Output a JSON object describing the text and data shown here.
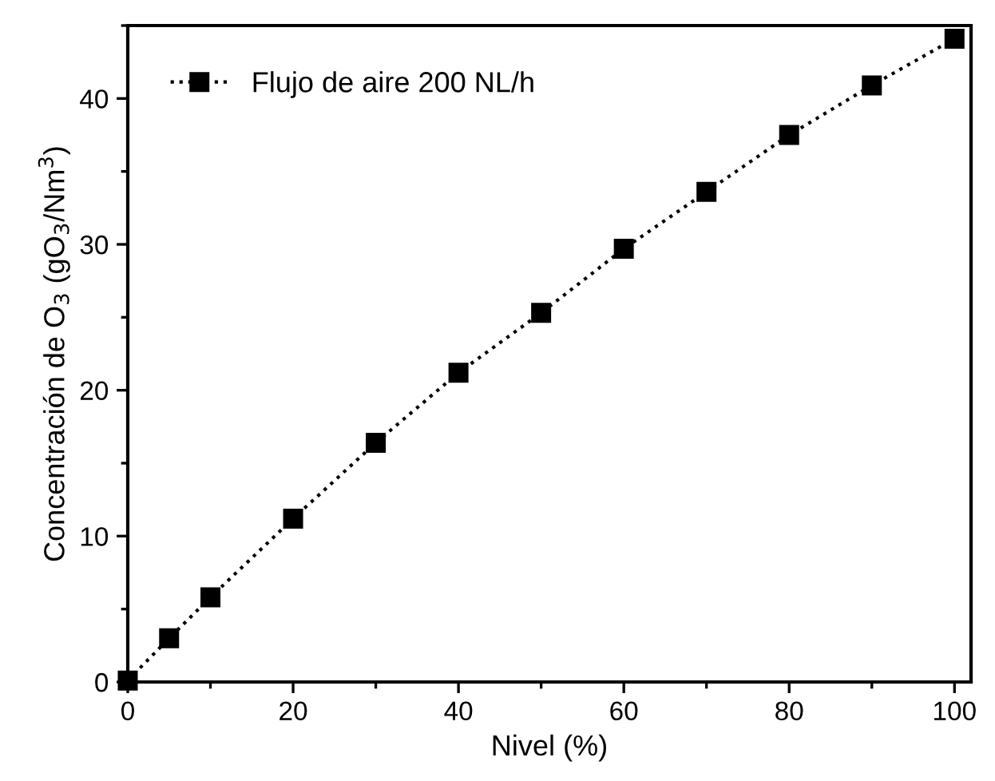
{
  "chart_data": {
    "type": "line",
    "xlabel": "Nivel (%)",
    "ylabel": "Concentración de O$_{3}$ (gO$_{3}$/Nm$^{3}$)",
    "x": [
      0,
      5,
      10,
      20,
      30,
      40,
      50,
      60,
      70,
      80,
      90,
      100
    ],
    "series": [
      {
        "name": "Flujo de aire 200 NL/h",
        "color": "#000000",
        "values": [
          0.1,
          3.0,
          5.8,
          11.2,
          16.4,
          21.2,
          25.3,
          29.7,
          33.6,
          37.5,
          40.9,
          44.1
        ]
      }
    ],
    "xlim": [
      0,
      102
    ],
    "ylim": [
      0,
      45
    ],
    "xticks": [
      0,
      20,
      40,
      60,
      80,
      100
    ],
    "yticks": [
      0,
      10,
      20,
      30,
      40
    ],
    "marker": "square",
    "line_style": "dotted",
    "legend": "top left",
    "grid": false
  }
}
